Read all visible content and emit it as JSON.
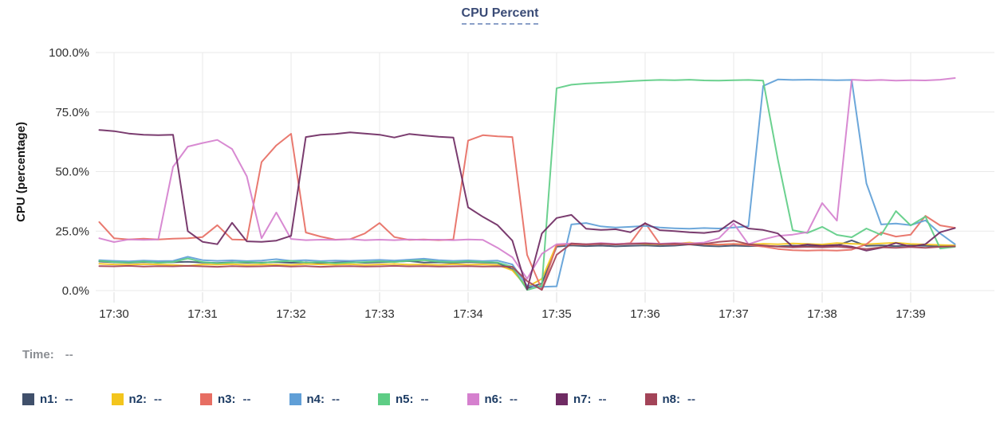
{
  "title": "CPU Percent",
  "time_row": {
    "label": "Time:",
    "value": "--"
  },
  "y_axis": {
    "label": "CPU (percentage)",
    "ticks": [
      "100.0%",
      "75.0%",
      "50.0%",
      "25.0%",
      "0.0%"
    ],
    "tick_values": [
      100,
      75,
      50,
      25,
      0
    ]
  },
  "x_axis": {
    "ticks": [
      "17:30",
      "17:31",
      "17:32",
      "17:33",
      "17:34",
      "17:35",
      "17:36",
      "17:37",
      "17:38",
      "17:39"
    ]
  },
  "legend": [
    {
      "id": "n1",
      "label": "n1:",
      "value": "--",
      "color": "#40506b"
    },
    {
      "id": "n2",
      "label": "n2:",
      "value": "--",
      "color": "#f3c51d"
    },
    {
      "id": "n3",
      "label": "n3:",
      "value": "--",
      "color": "#e76e63"
    },
    {
      "id": "n4",
      "label": "n4:",
      "value": "--",
      "color": "#609fd7"
    },
    {
      "id": "n5",
      "label": "n5:",
      "value": "--",
      "color": "#5ecd85"
    },
    {
      "id": "n6",
      "label": "n6:",
      "value": "--",
      "color": "#d580ce"
    },
    {
      "id": "n7",
      "label": "n7:",
      "value": "--",
      "color": "#6f2b63"
    },
    {
      "id": "n8",
      "label": "n8:",
      "value": "--",
      "color": "#a34458"
    }
  ],
  "chart_data": {
    "type": "line",
    "title": "CPU Percent",
    "ylabel": "CPU (percentage)",
    "ylim": [
      0,
      100
    ],
    "grid": true,
    "x_start": "17:29:50",
    "x_step_seconds": 10,
    "x_tick_labels": [
      "17:30",
      "17:31",
      "17:32",
      "17:33",
      "17:34",
      "17:35",
      "17:36",
      "17:37",
      "17:38",
      "17:39"
    ],
    "series": [
      {
        "name": "n1",
        "color": "#40506b",
        "values": [
          12.2,
          11.9,
          11.7,
          12.0,
          11.8,
          11.9,
          12.1,
          11.8,
          11.6,
          11.9,
          11.7,
          11.8,
          12.0,
          11.7,
          11.9,
          11.6,
          11.8,
          12.0,
          11.7,
          11.9,
          12.1,
          12.4,
          11.8,
          11.9,
          11.7,
          12.0,
          11.8,
          11.6,
          9.0,
          1.0,
          3.0,
          18.5,
          19.0,
          18.7,
          18.9,
          18.6,
          18.8,
          19.0,
          18.7,
          18.9,
          19.4,
          18.8,
          18.6,
          18.9,
          18.7,
          18.8,
          18.6,
          18.9,
          18.7,
          18.9,
          19.0,
          21.1,
          18.8,
          19.0,
          18.7,
          19.0,
          18.8,
          18.6,
          18.9
        ]
      },
      {
        "name": "n2",
        "color": "#f3c51d",
        "values": [
          11.3,
          11.0,
          10.9,
          11.1,
          11.0,
          10.8,
          10.4,
          11.0,
          10.9,
          11.1,
          10.8,
          11.0,
          10.9,
          10.8,
          11.2,
          11.0,
          10.9,
          11.1,
          10.8,
          11.0,
          11.2,
          10.9,
          11.0,
          10.8,
          11.1,
          10.9,
          11.0,
          10.8,
          8.5,
          1.5,
          5.0,
          19.3,
          19.6,
          19.4,
          19.7,
          19.5,
          19.8,
          19.6,
          19.4,
          19.7,
          20.2,
          19.5,
          19.3,
          19.6,
          19.4,
          19.7,
          19.5,
          19.8,
          19.6,
          19.4,
          20.0,
          19.7,
          19.5,
          19.8,
          20.1,
          19.6,
          19.4,
          19.2,
          19.0
        ]
      },
      {
        "name": "n3",
        "color": "#e76e63",
        "values": [
          28.8,
          22.0,
          21.5,
          21.8,
          21.5,
          21.8,
          22.0,
          22.5,
          27.5,
          21.5,
          21.3,
          54.0,
          61.0,
          65.9,
          24.4,
          22.7,
          21.4,
          21.6,
          24.0,
          28.4,
          22.5,
          21.3,
          21.5,
          21.2,
          21.5,
          63.0,
          65.3,
          64.8,
          64.5,
          15.0,
          0.5,
          19.0,
          19.5,
          19.3,
          19.6,
          19.4,
          20.0,
          28.4,
          19.6,
          19.4,
          19.7,
          19.5,
          19.3,
          19.6,
          19.2,
          18.5,
          17.5,
          17.0,
          16.8,
          17.0,
          16.8,
          17.2,
          19.5,
          24.4,
          22.7,
          23.5,
          31.4,
          27.4,
          26.4
        ]
      },
      {
        "name": "n4",
        "color": "#609fd7",
        "values": [
          12.8,
          12.5,
          12.3,
          12.6,
          12.4,
          12.5,
          14.2,
          12.8,
          12.5,
          12.7,
          12.4,
          12.6,
          13.2,
          12.5,
          12.8,
          12.4,
          12.6,
          12.5,
          12.7,
          12.9,
          12.6,
          13.0,
          13.4,
          12.8,
          12.5,
          12.7,
          12.4,
          12.6,
          11.0,
          2.0,
          1.6,
          1.8,
          27.8,
          28.4,
          27.0,
          26.5,
          26.8,
          27.2,
          26.5,
          26.2,
          26.0,
          26.3,
          26.1,
          26.5,
          27.0,
          86.0,
          88.7,
          88.5,
          88.6,
          88.5,
          88.4,
          88.5,
          45.0,
          27.8,
          28.2,
          27.5,
          29.5,
          24.0,
          19.5
        ]
      },
      {
        "name": "n5",
        "color": "#5ecd85",
        "values": [
          12.5,
          12.0,
          11.8,
          12.2,
          11.7,
          12.0,
          13.5,
          12.0,
          11.5,
          11.8,
          12.0,
          11.6,
          12.2,
          12.5,
          11.8,
          12.0,
          11.5,
          11.8,
          12.0,
          12.3,
          12.0,
          12.5,
          12.8,
          12.2,
          12.0,
          12.3,
          12.0,
          11.8,
          10.0,
          0.3,
          2.0,
          85.0,
          86.5,
          87.0,
          87.3,
          87.6,
          88.0,
          88.3,
          88.5,
          88.4,
          88.6,
          88.3,
          88.2,
          88.4,
          88.5,
          88.2,
          55.0,
          25.4,
          24.2,
          26.8,
          23.4,
          22.4,
          26.1,
          23.4,
          33.4,
          27.4,
          31.1,
          17.7,
          18.4
        ]
      },
      {
        "name": "n6",
        "color": "#d580ce",
        "values": [
          22.0,
          20.4,
          21.5,
          21.3,
          21.5,
          52.0,
          60.5,
          62.0,
          63.3,
          59.5,
          48.0,
          22.0,
          32.8,
          21.7,
          21.2,
          21.4,
          21.3,
          21.6,
          21.2,
          21.4,
          21.2,
          21.5,
          21.3,
          21.4,
          21.2,
          21.5,
          21.3,
          18.0,
          14.0,
          5.0,
          15.5,
          19.5,
          19.8,
          19.5,
          20.0,
          19.6,
          19.8,
          20.0,
          19.7,
          20.0,
          19.8,
          20.2,
          22.0,
          28.2,
          19.5,
          21.5,
          23.0,
          23.5,
          24.5,
          36.8,
          29.4,
          88.6,
          88.3,
          88.5,
          88.2,
          88.4,
          88.3,
          88.6,
          89.3
        ]
      },
      {
        "name": "n7",
        "color": "#6f2b63",
        "values": [
          67.5,
          67.0,
          66.0,
          65.5,
          65.3,
          65.5,
          25.0,
          20.5,
          19.5,
          28.5,
          20.7,
          20.5,
          21.0,
          23.0,
          64.5,
          65.5,
          65.8,
          66.5,
          66.0,
          65.5,
          64.3,
          65.8,
          65.2,
          64.6,
          64.3,
          35.0,
          31.0,
          27.5,
          21.0,
          0.5,
          24.0,
          30.5,
          31.8,
          26.0,
          25.5,
          25.8,
          24.5,
          28.3,
          25.4,
          25.0,
          24.5,
          24.2,
          25.0,
          29.4,
          26.1,
          25.5,
          24.0,
          18.5,
          19.4,
          18.8,
          19.2,
          18.5,
          16.8,
          18.0,
          20.0,
          18.5,
          19.5,
          24.5,
          26.3
        ]
      },
      {
        "name": "n8",
        "color": "#a34458",
        "values": [
          10.3,
          10.2,
          10.4,
          10.1,
          10.3,
          10.2,
          10.4,
          10.2,
          10.0,
          10.3,
          10.1,
          10.2,
          10.4,
          10.1,
          10.3,
          10.0,
          10.2,
          10.3,
          10.1,
          10.2,
          10.4,
          10.2,
          10.3,
          10.1,
          10.2,
          10.3,
          10.1,
          10.2,
          10.0,
          4.0,
          0.3,
          15.0,
          19.8,
          19.5,
          19.7,
          19.4,
          19.6,
          19.8,
          19.5,
          19.7,
          19.4,
          19.6,
          20.5,
          21.0,
          19.5,
          19.0,
          18.5,
          18.2,
          18.4,
          18.2,
          18.5,
          18.0,
          17.5,
          18.2,
          18.0,
          18.3,
          18.0,
          18.4,
          18.6
        ]
      }
    ]
  }
}
